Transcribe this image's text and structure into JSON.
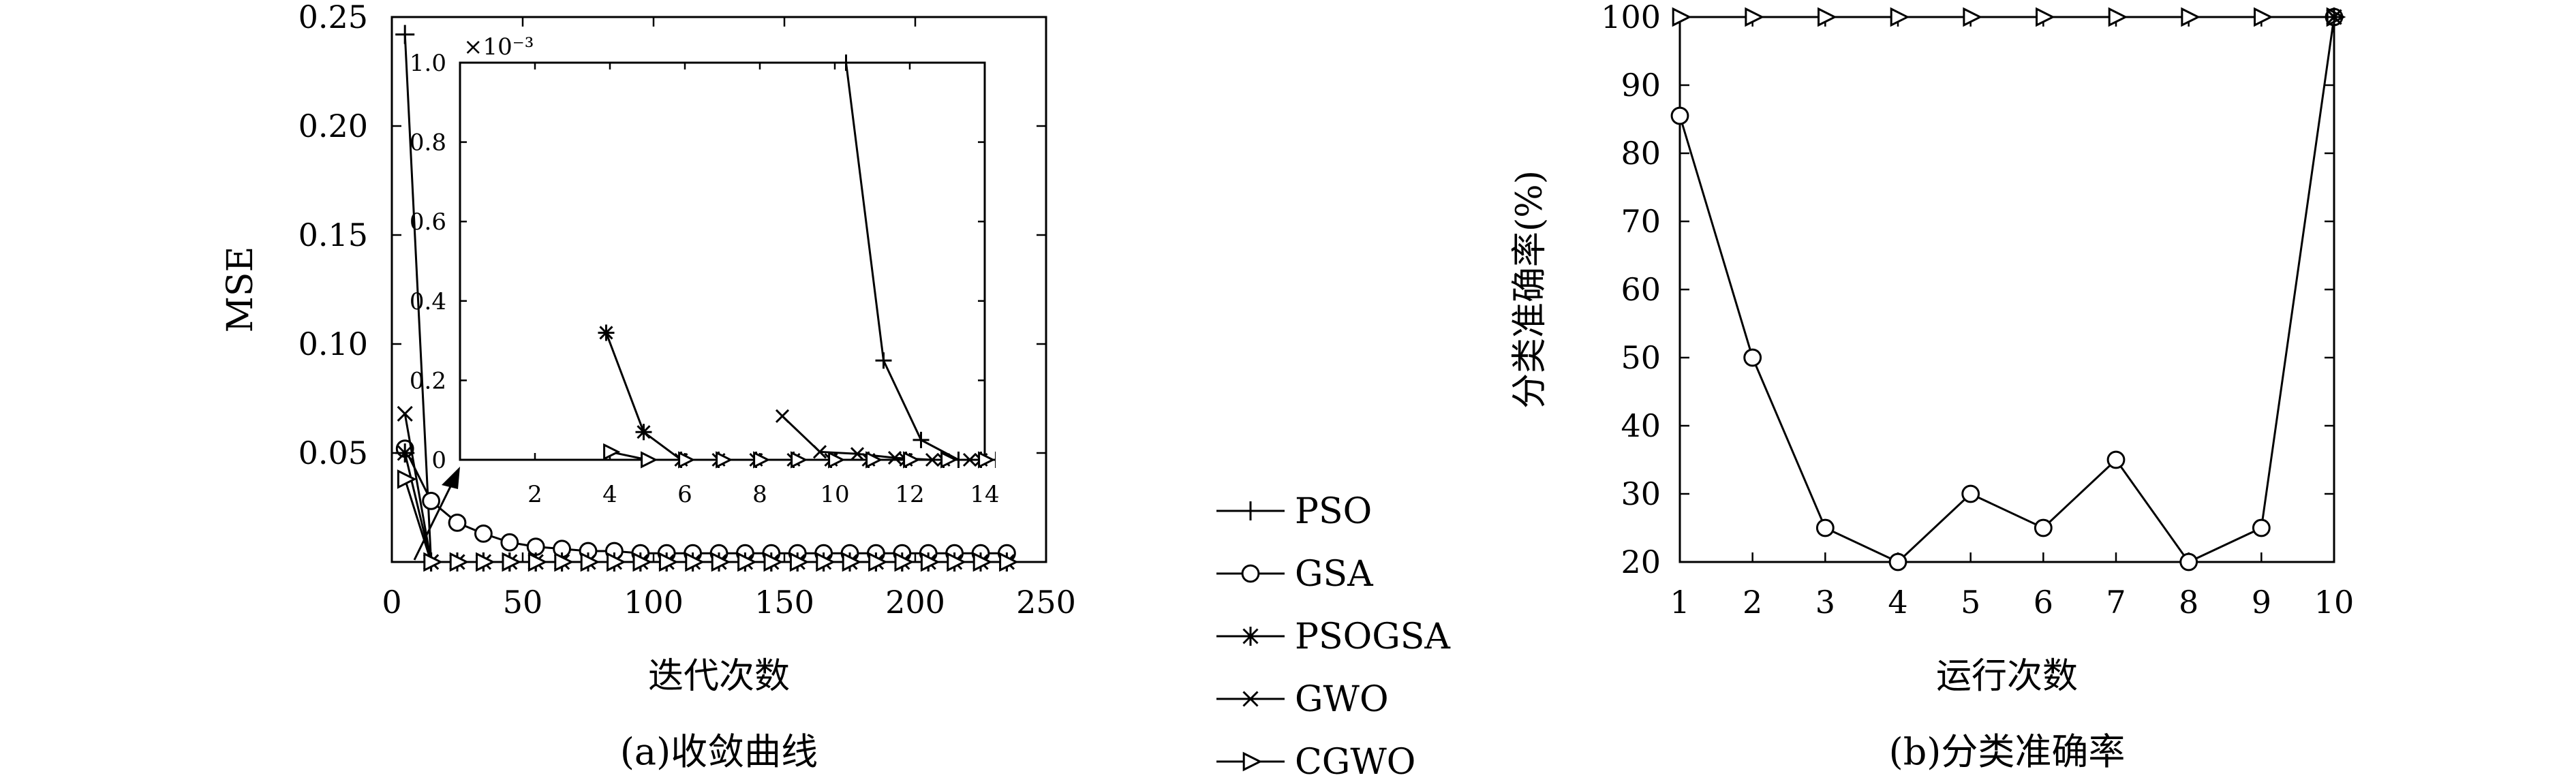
{
  "legend": {
    "entries": [
      {
        "name": "PSO",
        "marker": "plus"
      },
      {
        "name": "GSA",
        "marker": "circle"
      },
      {
        "name": "PSOGSA",
        "marker": "asterisk"
      },
      {
        "name": "GWO",
        "marker": "cross"
      },
      {
        "name": "CGWO",
        "marker": "triangle-right"
      }
    ]
  },
  "chart_data": [
    {
      "type": "line",
      "caption": "(a)收敛曲线",
      "xlabel": "迭代次数",
      "ylabel": "MSE",
      "xlim": [
        0,
        250
      ],
      "ylim": [
        0,
        0.25
      ],
      "x_ticks": [
        0,
        50,
        100,
        150,
        200,
        250
      ],
      "y_ticks": [
        0.05,
        0.1,
        0.15,
        0.2,
        0.25
      ],
      "x_tick_labels": [
        "0",
        "50",
        "100",
        "150",
        "200",
        "250"
      ],
      "y_tick_labels": [
        "0.05",
        "0.10",
        "0.15",
        "0.20",
        "0.25"
      ],
      "grid": false,
      "series": [
        {
          "name": "PSO",
          "marker": "plus",
          "x": [
            5,
            15,
            25,
            35,
            45,
            55,
            65,
            75,
            85,
            95,
            105,
            115,
            125,
            135,
            145,
            155,
            165,
            175,
            185,
            195,
            205,
            215,
            225,
            235
          ],
          "y": [
            0.242,
            0,
            0,
            0,
            0,
            0,
            0,
            0,
            0,
            0,
            0,
            0,
            0,
            0,
            0,
            0,
            0,
            0,
            0,
            0,
            0,
            0,
            0,
            0
          ]
        },
        {
          "name": "GSA",
          "marker": "circle",
          "x": [
            5,
            15,
            25,
            35,
            45,
            55,
            65,
            75,
            85,
            95,
            105,
            115,
            125,
            135,
            145,
            155,
            165,
            175,
            185,
            195,
            205,
            215,
            225,
            235
          ],
          "y": [
            0.052,
            0.028,
            0.018,
            0.013,
            0.009,
            0.007,
            0.006,
            0.005,
            0.005,
            0.004,
            0.004,
            0.004,
            0.004,
            0.004,
            0.004,
            0.004,
            0.004,
            0.004,
            0.004,
            0.004,
            0.004,
            0.004,
            0.004,
            0.004
          ]
        },
        {
          "name": "PSOGSA",
          "marker": "asterisk",
          "x": [
            5,
            15,
            25,
            35,
            45,
            55,
            65,
            75,
            85,
            95,
            105,
            115,
            125,
            135,
            145,
            155,
            165,
            175,
            185,
            195,
            205,
            215,
            225,
            235
          ],
          "y": [
            0.05,
            0,
            0,
            0,
            0,
            0,
            0,
            0,
            0,
            0,
            0,
            0,
            0,
            0,
            0,
            0,
            0,
            0,
            0,
            0,
            0,
            0,
            0,
            0
          ]
        },
        {
          "name": "GWO",
          "marker": "cross",
          "x": [
            5,
            15,
            25,
            35,
            45,
            55,
            65,
            75,
            85,
            95,
            105,
            115,
            125,
            135,
            145,
            155,
            165,
            175,
            185,
            195,
            205,
            215,
            225,
            235
          ],
          "y": [
            0.068,
            0,
            0,
            0,
            0,
            0,
            0,
            0,
            0,
            0,
            0,
            0,
            0,
            0,
            0,
            0,
            0,
            0,
            0,
            0,
            0,
            0,
            0,
            0
          ]
        },
        {
          "name": "CGWO",
          "marker": "triangle-right",
          "x": [
            5,
            15,
            25,
            35,
            45,
            55,
            65,
            75,
            85,
            95,
            105,
            115,
            125,
            135,
            145,
            155,
            165,
            175,
            185,
            195,
            205,
            215,
            225,
            235
          ],
          "y": [
            0.038,
            0,
            0,
            0,
            0,
            0,
            0,
            0,
            0,
            0,
            0,
            0,
            0,
            0,
            0,
            0,
            0,
            0,
            0,
            0,
            0,
            0,
            0,
            0
          ]
        }
      ],
      "inset": {
        "type": "line",
        "xlim": [
          0,
          14
        ],
        "ylim": [
          0,
          1.0
        ],
        "y_scale_label": "×10⁻³",
        "x_ticks": [
          2,
          4,
          6,
          8,
          10,
          12,
          14
        ],
        "y_ticks": [
          0,
          0.2,
          0.4,
          0.6,
          0.8,
          1.0
        ],
        "x_tick_labels": [
          "2",
          "4",
          "6",
          "8",
          "10",
          "12",
          "14"
        ],
        "y_tick_labels": [
          "0",
          "0.2",
          "0.4",
          "0.6",
          "0.8",
          "1.0"
        ],
        "series": [
          {
            "name": "PSO",
            "marker": "plus",
            "x": [
              10.3,
              11.3,
              12.3,
              13.3,
              14.3
            ],
            "y": [
              1.0,
              0.25,
              0.05,
              0,
              0
            ]
          },
          {
            "name": "PSOGSA",
            "marker": "asterisk",
            "x": [
              3.9,
              4.9,
              5.9,
              6.9,
              7.9,
              8.9,
              9.9,
              10.9,
              11.9,
              12.9,
              13.9
            ],
            "y": [
              0.32,
              0.07,
              0,
              0,
              0,
              0,
              0,
              0,
              0,
              0,
              0
            ]
          },
          {
            "name": "GWO",
            "marker": "cross",
            "x": [
              8.6,
              9.6,
              10.6,
              11.6,
              12.6,
              13.6
            ],
            "y": [
              0.11,
              0.02,
              0.015,
              0.005,
              0,
              0
            ]
          },
          {
            "name": "CGWO",
            "marker": "triangle-right",
            "x": [
              4.0,
              5.0,
              6.0,
              7.0,
              8.0,
              9.0,
              10.0,
              11.0,
              12.0,
              13.0,
              14.0
            ],
            "y": [
              0.02,
              0,
              0,
              0,
              0,
              0,
              0,
              0,
              0,
              0,
              0
            ]
          }
        ]
      }
    },
    {
      "type": "line",
      "caption": "(b)分类准确率",
      "xlabel": "运行次数",
      "ylabel": "分类准确率(%)",
      "xlim": [
        1,
        10
      ],
      "ylim": [
        20,
        100
      ],
      "x_ticks": [
        1,
        2,
        3,
        4,
        5,
        6,
        7,
        8,
        9,
        10
      ],
      "y_ticks": [
        20,
        30,
        40,
        50,
        60,
        70,
        80,
        90,
        100
      ],
      "x_tick_labels": [
        "1",
        "2",
        "3",
        "4",
        "5",
        "6",
        "7",
        "8",
        "9",
        "10"
      ],
      "y_tick_labels": [
        "20",
        "30",
        "40",
        "50",
        "60",
        "70",
        "80",
        "90",
        "100"
      ],
      "grid": false,
      "series": [
        {
          "name": "GSA",
          "marker": "circle",
          "x": [
            1,
            2,
            3,
            4,
            5,
            6,
            7,
            8,
            9,
            10
          ],
          "y": [
            85.5,
            50,
            25,
            20,
            30,
            25,
            35,
            20,
            25,
            100
          ]
        },
        {
          "name": "CGWO",
          "marker": "triangle-right",
          "x": [
            1,
            2,
            3,
            4,
            5,
            6,
            7,
            8,
            9,
            10
          ],
          "y": [
            100,
            100,
            100,
            100,
            100,
            100,
            100,
            100,
            100,
            100
          ]
        },
        {
          "name": "PSO",
          "marker": "plus",
          "x": [
            10
          ],
          "y": [
            100
          ]
        },
        {
          "name": "PSOGSA",
          "marker": "asterisk",
          "x": [
            10
          ],
          "y": [
            100
          ]
        },
        {
          "name": "GWO",
          "marker": "cross",
          "x": [
            10
          ],
          "y": [
            100
          ]
        }
      ]
    }
  ]
}
